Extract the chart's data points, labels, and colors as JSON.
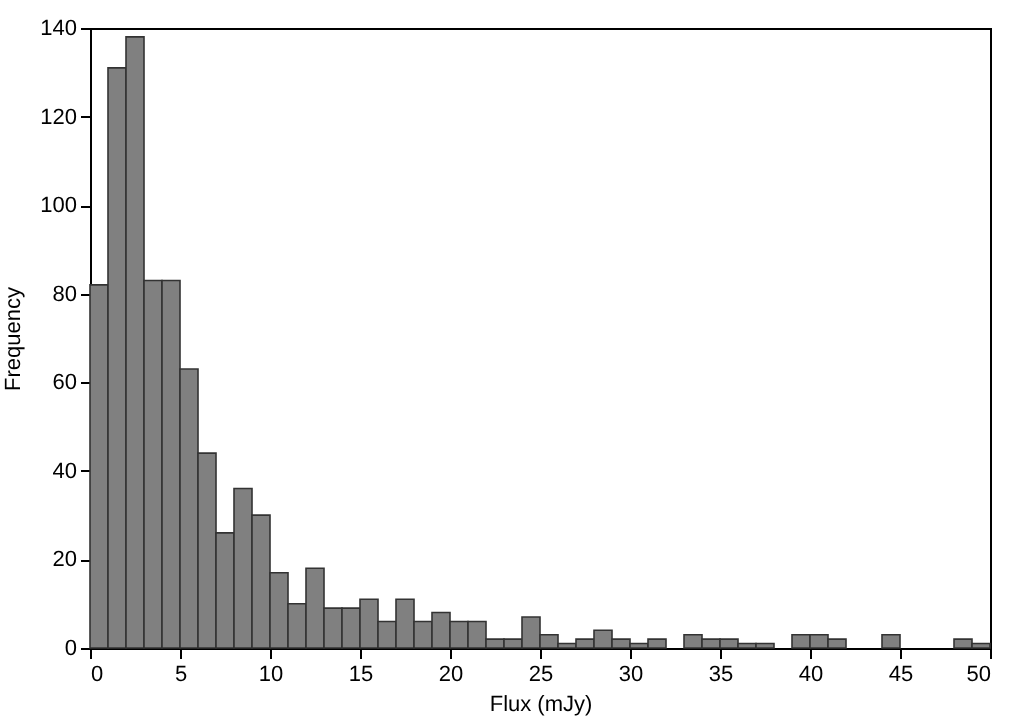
{
  "chart_data": {
    "type": "histogram",
    "xlabel": "Flux (mJy)",
    "ylabel": "Frequency",
    "bins": [
      0,
      1,
      2,
      3,
      4,
      5,
      6,
      7,
      8,
      9,
      10,
      11,
      12,
      13,
      14,
      15,
      16,
      17,
      18,
      19,
      20,
      21,
      22,
      23,
      24,
      25,
      26,
      27,
      28,
      29,
      30,
      31,
      32,
      33,
      34,
      35,
      36,
      37,
      38,
      39,
      40,
      41,
      42,
      43,
      44,
      45,
      46,
      47,
      48,
      49,
      50
    ],
    "values": [
      82,
      131,
      138,
      83,
      83,
      63,
      44,
      26,
      36,
      30,
      17,
      10,
      18,
      9,
      9,
      11,
      6,
      11,
      6,
      8,
      6,
      6,
      2,
      2,
      7,
      3,
      1,
      2,
      4,
      2,
      1,
      2,
      0,
      3,
      2,
      2,
      1,
      1,
      0,
      3,
      3,
      2,
      0,
      0,
      3,
      0,
      0,
      0,
      2,
      1
    ],
    "color": "#808080",
    "xlim": [
      0,
      50
    ],
    "xticks": [
      0,
      5,
      10,
      15,
      20,
      25,
      30,
      35,
      40,
      45,
      50
    ],
    "ylim": [
      0,
      140
    ],
    "yticks": [
      0,
      20,
      40,
      60,
      80,
      100,
      120,
      140
    ],
    "grid": false
  }
}
